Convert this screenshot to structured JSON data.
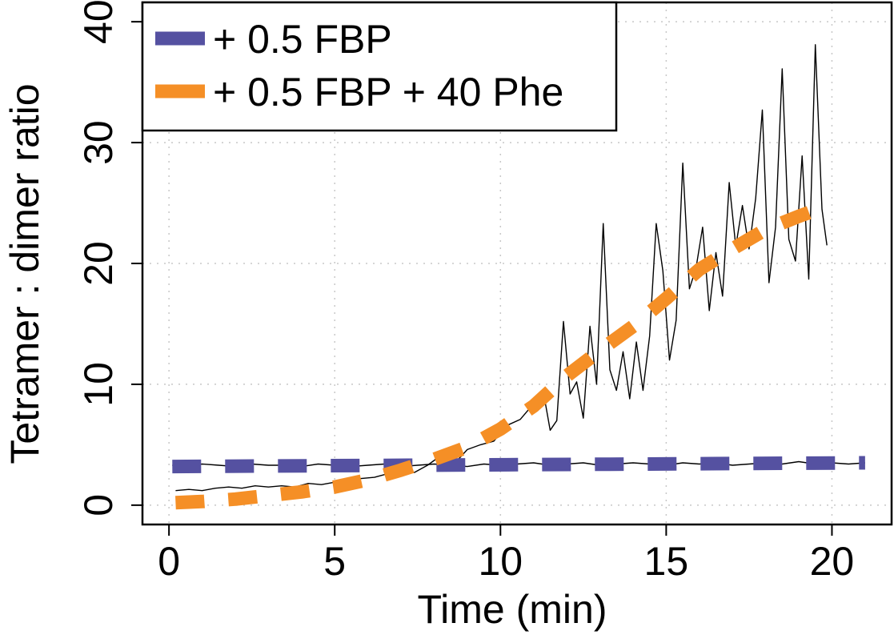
{
  "chart_data": {
    "type": "line",
    "title": "",
    "xlabel": "Time (min)",
    "ylabel": "Tetramer : dimer ratio",
    "xlim": [
      -0.8,
      21.8
    ],
    "ylim": [
      -1.6,
      41.6
    ],
    "xticks": [
      0,
      5,
      10,
      15,
      20
    ],
    "yticks": [
      0,
      10,
      20,
      30,
      40
    ],
    "grid": true,
    "legend_position": "top-left",
    "series": [
      {
        "name": "+ 0.5 FBP",
        "color": "#5551a1",
        "style": "dashed",
        "fit_x": [
          0.1,
          21
        ],
        "fit_y": [
          3.2,
          3.5
        ],
        "raw": {
          "x": [
            0.1,
            0.5,
            1.0,
            1.5,
            2.0,
            2.5,
            3.0,
            3.5,
            4.0,
            4.5,
            5.0,
            5.5,
            6.0,
            6.5,
            7.0,
            7.5,
            8.0,
            8.5,
            9.0,
            9.5,
            10.0,
            10.5,
            11.0,
            11.5,
            12.0,
            12.5,
            13.0,
            13.5,
            14.0,
            14.5,
            15.0,
            15.5,
            16.0,
            16.5,
            17.0,
            17.5,
            18.0,
            18.5,
            19.0,
            19.5,
            20.0,
            20.5,
            21.0
          ],
          "y": [
            3.3,
            3.2,
            3.4,
            3.3,
            3.2,
            3.4,
            3.3,
            3.3,
            3.2,
            3.4,
            3.3,
            3.2,
            3.3,
            3.4,
            3.2,
            3.3,
            3.4,
            3.3,
            3.2,
            3.4,
            3.3,
            3.4,
            3.5,
            3.3,
            3.4,
            3.5,
            3.3,
            3.4,
            3.5,
            3.4,
            3.3,
            3.5,
            3.4,
            3.5,
            3.3,
            3.4,
            3.5,
            3.4,
            3.6,
            3.4,
            3.5,
            3.4,
            3.5
          ]
        }
      },
      {
        "name": "+ 0.5 FBP + 40 Phe",
        "color": "#f58f26",
        "style": "dashed",
        "fit_x": [
          0.2,
          1.0,
          2.0,
          3.0,
          4.0,
          5.0,
          6.0,
          7.0,
          8.0,
          9.0,
          10.0,
          11.0,
          12.0,
          13.0,
          14.0,
          15.0,
          16.0,
          17.0,
          18.0,
          19.0,
          19.6
        ],
        "fit_y": [
          0.2,
          0.3,
          0.5,
          0.8,
          1.1,
          1.5,
          2.1,
          2.9,
          3.8,
          4.8,
          6.3,
          8.2,
          10.7,
          12.8,
          14.8,
          17.1,
          19.5,
          21.2,
          22.8,
          23.9,
          24.5
        ],
        "raw": {
          "x": [
            0.2,
            0.6,
            1.0,
            1.4,
            1.8,
            2.2,
            2.6,
            3.0,
            3.4,
            3.8,
            4.2,
            4.6,
            5.0,
            5.4,
            5.8,
            6.2,
            6.6,
            7.0,
            7.4,
            7.8,
            8.2,
            8.6,
            9.0,
            9.4,
            9.8,
            10.2,
            10.6,
            11.0,
            11.3,
            11.5,
            11.7,
            11.9,
            12.1,
            12.3,
            12.5,
            12.7,
            12.9,
            13.1,
            13.3,
            13.5,
            13.7,
            13.9,
            14.1,
            14.3,
            14.5,
            14.7,
            14.9,
            15.1,
            15.3,
            15.5,
            15.7,
            15.9,
            16.1,
            16.3,
            16.5,
            16.7,
            16.9,
            17.1,
            17.3,
            17.5,
            17.7,
            17.9,
            18.1,
            18.3,
            18.5,
            18.7,
            18.9,
            19.1,
            19.3,
            19.5,
            19.7,
            19.85
          ],
          "y": [
            1.2,
            1.3,
            1.2,
            1.4,
            1.5,
            1.4,
            1.6,
            1.5,
            1.6,
            1.5,
            1.8,
            1.7,
            1.9,
            2.0,
            2.2,
            2.3,
            2.6,
            2.9,
            2.7,
            3.3,
            4.1,
            3.4,
            4.6,
            5.0,
            5.3,
            6.6,
            7.1,
            8.4,
            9.3,
            6.2,
            7.0,
            15.2,
            9.2,
            10.2,
            7.2,
            14.8,
            10.0,
            23.3,
            11.2,
            9.5,
            12.7,
            8.8,
            13.5,
            9.5,
            14.0,
            23.3,
            19.4,
            12.0,
            15.3,
            28.3,
            17.9,
            19.6,
            23.0,
            16.1,
            20.9,
            17.3,
            26.7,
            21.4,
            24.8,
            21.2,
            25.4,
            32.7,
            18.4,
            23.0,
            36.1,
            22.0,
            20.2,
            28.9,
            18.7,
            38.1,
            24.5,
            21.5
          ]
        }
      }
    ]
  }
}
